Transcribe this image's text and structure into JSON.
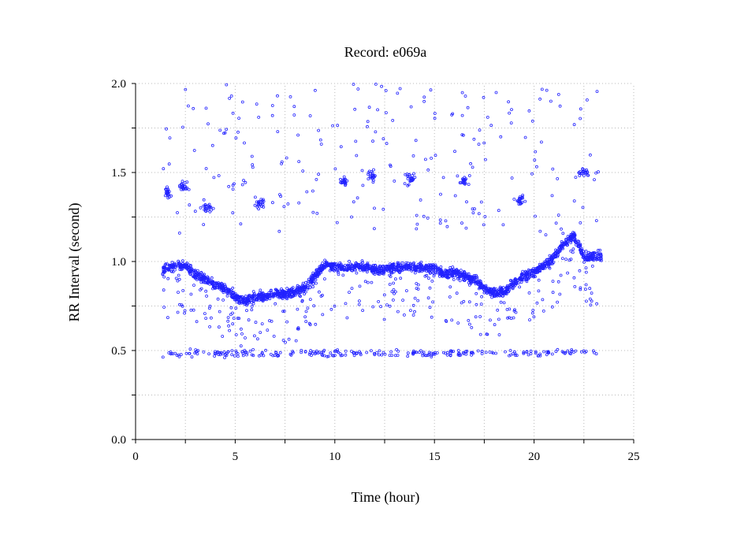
{
  "chart_data": {
    "type": "scatter",
    "title": "Record:  e069a",
    "xlabel": "Time (hour)",
    "ylabel": "RR Interval (second)",
    "xlim": [
      0,
      25
    ],
    "ylim": [
      0.0,
      2.0
    ],
    "x_ticks": [
      "0",
      "5",
      "10",
      "15",
      "20",
      "25"
    ],
    "y_ticks": [
      "0.0",
      "0.5",
      "1.0",
      "1.5",
      "2.0"
    ],
    "grid": true,
    "grid_style": "dotted",
    "point_color": "#2222ff",
    "series": [
      {
        "marker": "small-circle",
        "x_range": [
          1.35,
          23.4
        ],
        "main_band": [
          [
            1.4,
            0.95
          ],
          [
            2.0,
            0.97
          ],
          [
            2.5,
            0.98
          ],
          [
            3.0,
            0.93
          ],
          [
            3.5,
            0.9
          ],
          [
            4.0,
            0.87
          ],
          [
            4.5,
            0.85
          ],
          [
            5.0,
            0.8
          ],
          [
            5.5,
            0.78
          ],
          [
            6.0,
            0.8
          ],
          [
            6.5,
            0.8
          ],
          [
            7.0,
            0.82
          ],
          [
            7.5,
            0.82
          ],
          [
            8.0,
            0.83
          ],
          [
            8.5,
            0.85
          ],
          [
            9.0,
            0.92
          ],
          [
            9.5,
            0.98
          ],
          [
            10.0,
            0.97
          ],
          [
            10.5,
            0.96
          ],
          [
            11.0,
            0.97
          ],
          [
            11.5,
            0.97
          ],
          [
            12.0,
            0.96
          ],
          [
            12.5,
            0.95
          ],
          [
            13.0,
            0.97
          ],
          [
            13.5,
            0.97
          ],
          [
            14.0,
            0.97
          ],
          [
            14.5,
            0.96
          ],
          [
            15.0,
            0.96
          ],
          [
            15.5,
            0.93
          ],
          [
            16.0,
            0.94
          ],
          [
            16.5,
            0.92
          ],
          [
            17.0,
            0.9
          ],
          [
            17.5,
            0.85
          ],
          [
            18.0,
            0.82
          ],
          [
            18.5,
            0.83
          ],
          [
            19.0,
            0.88
          ],
          [
            19.5,
            0.92
          ],
          [
            20.0,
            0.94
          ],
          [
            20.5,
            0.98
          ],
          [
            21.0,
            1.02
          ],
          [
            21.5,
            1.1
          ],
          [
            22.0,
            1.15
          ],
          [
            22.5,
            1.02
          ],
          [
            23.0,
            1.03
          ],
          [
            23.4,
            1.03
          ]
        ],
        "upper_clusters": [
          [
            1.6,
            1.38
          ],
          [
            2.4,
            1.42
          ],
          [
            3.6,
            1.3
          ],
          [
            6.2,
            1.32
          ],
          [
            10.5,
            1.45
          ],
          [
            11.8,
            1.48
          ],
          [
            13.8,
            1.47
          ],
          [
            16.5,
            1.45
          ],
          [
            19.3,
            1.35
          ],
          [
            22.5,
            1.5
          ]
        ],
        "lower_band": [
          0.47,
          0.5
        ],
        "outliers_near": 2.0
      }
    ]
  }
}
